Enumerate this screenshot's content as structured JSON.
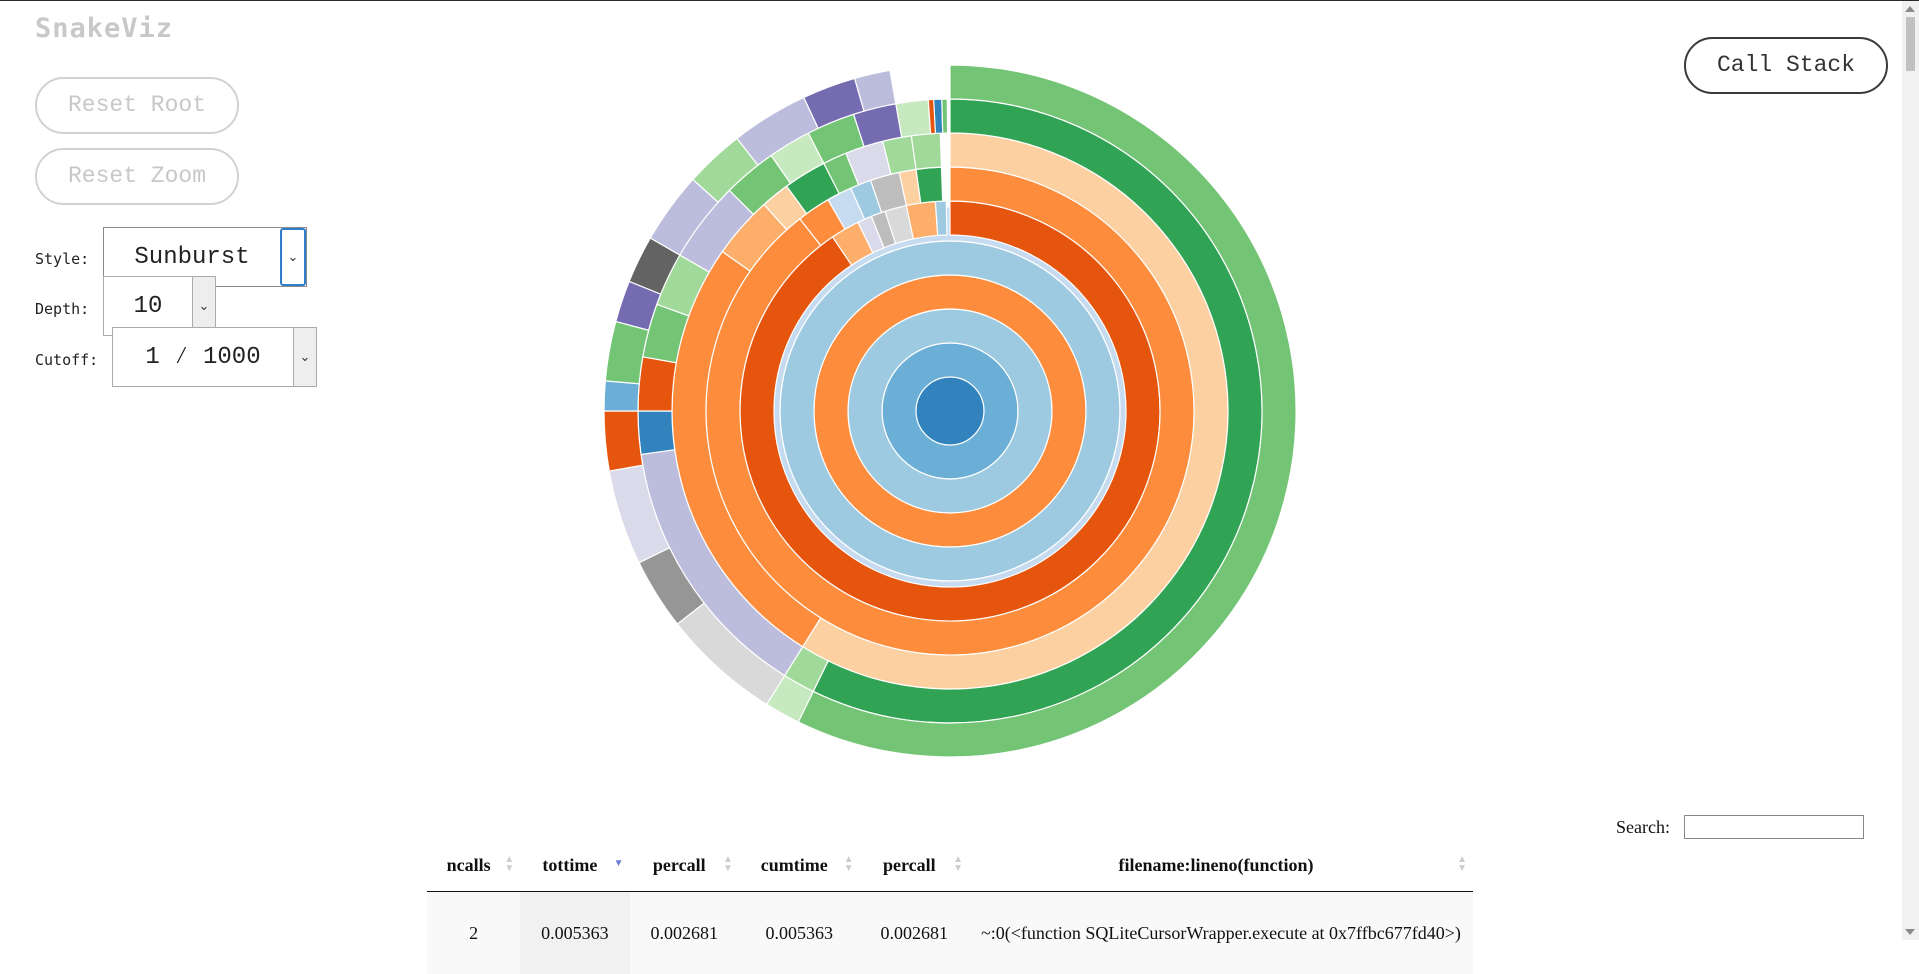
{
  "header": {
    "title": "SnakeViz"
  },
  "controls": {
    "reset_root_label": "Reset Root",
    "reset_zoom_label": "Reset Zoom",
    "call_stack_label": "Call Stack",
    "style_label": "Style:",
    "style_value": "Sunburst",
    "depth_label": "Depth:",
    "depth_value": "10",
    "cutoff_label": "Cutoff:",
    "cutoff_value": "1 ⁄ 1000"
  },
  "search": {
    "label": "Search:",
    "value": ""
  },
  "table": {
    "sorted_column": "tottime",
    "columns": [
      "ncalls",
      "tottime",
      "percall",
      "cumtime",
      "percall",
      "filename:lineno(function)"
    ],
    "rows": [
      {
        "ncalls": "2",
        "tottime": "0.005363",
        "percall": "0.002681",
        "cumtime": "0.005363",
        "percall2": "0.002681",
        "filename": "~:0(<function SQLiteCursorWrapper.execute at 0x7ffbc677fd40>)"
      }
    ]
  },
  "icons": {
    "sort_both": "sort-both-icon",
    "sort_desc": "sort-desc-icon",
    "dropdown": "chevron-down-icon"
  },
  "colors": {
    "orange_dark": "#e6550d",
    "orange": "#fd8d3c",
    "orange_light": "#fdae6b",
    "orange_pale": "#fdd0a2",
    "green_dark": "#31a354",
    "green": "#74c476",
    "green_light": "#a1d99b",
    "green_pale": "#c7e9c0",
    "blue_dark": "#3182bd",
    "blue": "#6baed6",
    "blue_light": "#9ecae1",
    "blue_pale": "#c6dbef",
    "purple_dark": "#756bb1",
    "purple_light": "#bcbddc",
    "purple_pale": "#dadaeb",
    "grey_dark": "#636363",
    "grey": "#969696",
    "grey_light": "#bdbdbd",
    "grey_pale": "#d9d9d9"
  }
}
